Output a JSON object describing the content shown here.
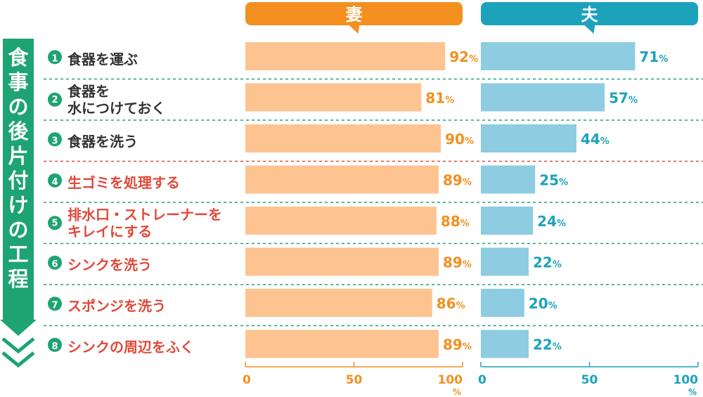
{
  "chart_data": {
    "type": "bar",
    "side_label": "食事の後片付けの工程",
    "series": [
      {
        "name": "妻",
        "color": "#f39020",
        "bar_color": "#fdc491",
        "values": [
          92,
          81,
          90,
          89,
          88,
          89,
          86,
          89
        ]
      },
      {
        "name": "夫",
        "color": "#1da2bc",
        "bar_color": "#8dcce1",
        "values": [
          71,
          57,
          44,
          25,
          24,
          22,
          20,
          22
        ]
      }
    ],
    "categories": [
      {
        "num": "1",
        "lines": [
          "食器を運ぶ"
        ],
        "highlight": false
      },
      {
        "num": "2",
        "lines": [
          "食器を",
          "水につけておく"
        ],
        "highlight": false
      },
      {
        "num": "3",
        "lines": [
          "食器を洗う"
        ],
        "highlight": false
      },
      {
        "num": "4",
        "lines": [
          "生ゴミを処理する"
        ],
        "highlight": true
      },
      {
        "num": "5",
        "lines": [
          "排水口・ストレーナーを",
          "キレイにする"
        ],
        "highlight": true
      },
      {
        "num": "6",
        "lines": [
          "シンクを洗う"
        ],
        "highlight": true
      },
      {
        "num": "7",
        "lines": [
          "スポンジを洗う"
        ],
        "highlight": true
      },
      {
        "num": "8",
        "lines": [
          "シンクの周辺をふく"
        ],
        "highlight": true
      }
    ],
    "xlim": [
      0,
      100
    ],
    "ticks": [
      "0",
      "50",
      "100"
    ],
    "unit": "%",
    "colors": {
      "label_normal": "#333333",
      "label_highlight": "#e0493a",
      "num_circle": "#1ea372",
      "side_band": "#1ea372",
      "divider": "#1ea372",
      "divider_highlight": "#e0493a"
    }
  }
}
